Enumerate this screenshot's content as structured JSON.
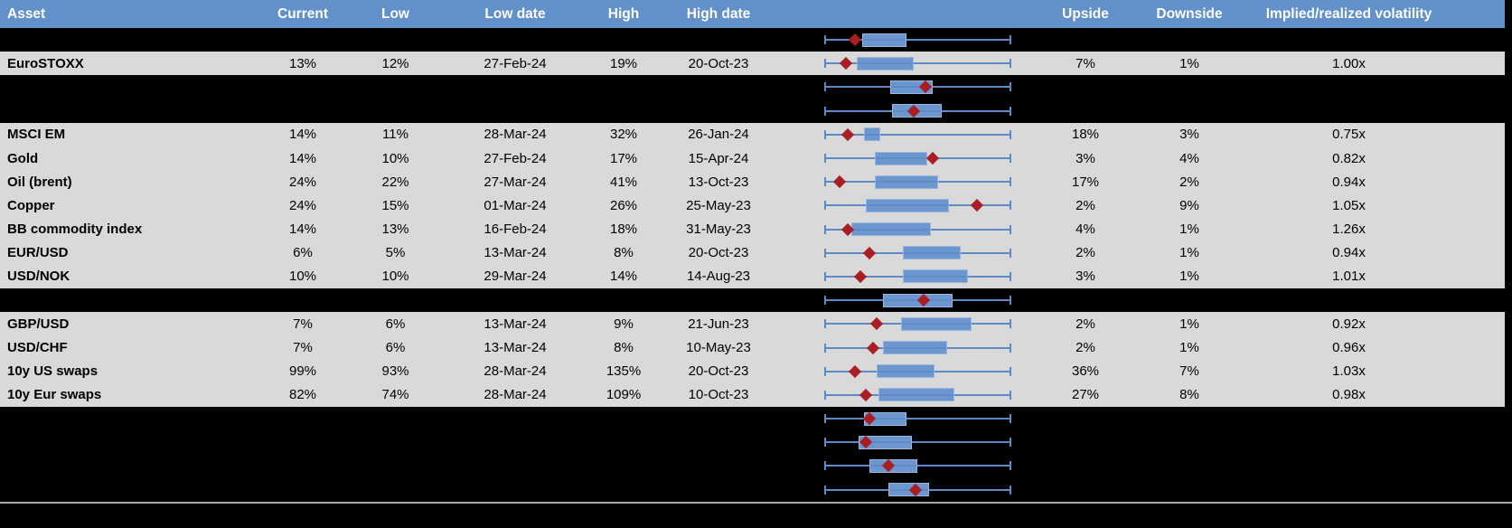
{
  "colors": {
    "header_bg": "#6190CB",
    "header_text": "#FFFFFF",
    "row_bg": "#D9D9D9",
    "hidden_row_bg": "#000000",
    "whisker_blue": "#5B8AC6",
    "box_fill_blue": "#6B96CE",
    "box_border_blue": "#9AB6DE",
    "marker_red": "#A91E22",
    "separator_gray": "#A6A6A6",
    "text": "#000000"
  },
  "chart_data": {
    "type": "table",
    "note_boxplot_units": "box values are normalized 0-1 across each row's whisker span (whisker_min=0, whisker_max=1)",
    "columns": [
      {
        "key": "asset",
        "label": "Asset"
      },
      {
        "key": "current",
        "label": "Current"
      },
      {
        "key": "low",
        "label": "Low"
      },
      {
        "key": "low_date",
        "label": "Low date"
      },
      {
        "key": "high",
        "label": "High"
      },
      {
        "key": "high_date",
        "label": "High date"
      },
      {
        "key": "boxplot",
        "label": ""
      },
      {
        "key": "upside",
        "label": "Upside"
      },
      {
        "key": "downside",
        "label": "Downside"
      },
      {
        "key": "implied_realized",
        "label": "Implied/realized volatility"
      }
    ],
    "rows": [
      {
        "type": "chart",
        "box": {
          "whisker_min": 0,
          "q1": 0.2,
          "q3": 0.43,
          "whisker_max": 1,
          "marker": 0.16
        }
      },
      {
        "type": "data",
        "asset": "EuroSTOXX",
        "current": "13%",
        "low": "12%",
        "low_date": "27-Feb-24",
        "high": "19%",
        "high_date": "20-Oct-23",
        "upside": "7%",
        "downside": "1%",
        "implied_realized": "1.00x",
        "box": {
          "whisker_min": 0,
          "q1": 0.17,
          "q3": 0.47,
          "whisker_max": 1,
          "marker": 0.11
        }
      },
      {
        "type": "chart",
        "box": {
          "whisker_min": 0,
          "q1": 0.35,
          "q3": 0.57,
          "whisker_max": 1,
          "marker": 0.54
        }
      },
      {
        "type": "chart",
        "box": {
          "whisker_min": 0,
          "q1": 0.36,
          "q3": 0.62,
          "whisker_max": 1,
          "marker": 0.48
        }
      },
      {
        "type": "data",
        "asset": "MSCI EM",
        "current": "14%",
        "low": "11%",
        "low_date": "28-Mar-24",
        "high": "32%",
        "high_date": "26-Jan-24",
        "upside": "18%",
        "downside": "3%",
        "implied_realized": "0.75x",
        "box": {
          "whisker_min": 0,
          "q1": 0.21,
          "q3": 0.29,
          "whisker_max": 1,
          "marker": 0.12
        }
      },
      {
        "type": "data",
        "asset": "Gold",
        "current": "14%",
        "low": "10%",
        "low_date": "27-Feb-24",
        "high": "17%",
        "high_date": "15-Apr-24",
        "upside": "3%",
        "downside": "4%",
        "implied_realized": "0.82x",
        "box": {
          "whisker_min": 0,
          "q1": 0.27,
          "q3": 0.54,
          "whisker_max": 1,
          "marker": 0.58
        }
      },
      {
        "type": "data",
        "asset": "Oil (brent)",
        "current": "24%",
        "low": "22%",
        "low_date": "27-Mar-24",
        "high": "41%",
        "high_date": "13-Oct-23",
        "upside": "17%",
        "downside": "2%",
        "implied_realized": "0.94x",
        "box": {
          "whisker_min": 0,
          "q1": 0.27,
          "q3": 0.6,
          "whisker_max": 1,
          "marker": 0.08
        }
      },
      {
        "type": "data",
        "asset": "Copper",
        "current": "24%",
        "low": "15%",
        "low_date": "01-Mar-24",
        "high": "26%",
        "high_date": "25-May-23",
        "upside": "2%",
        "downside": "9%",
        "implied_realized": "1.05x",
        "box": {
          "whisker_min": 0,
          "q1": 0.22,
          "q3": 0.66,
          "whisker_max": 1,
          "marker": 0.82
        }
      },
      {
        "type": "data",
        "asset": "BB commodity index",
        "current": "14%",
        "low": "13%",
        "low_date": "16-Feb-24",
        "high": "18%",
        "high_date": "31-May-23",
        "upside": "4%",
        "downside": "1%",
        "implied_realized": "1.26x",
        "box": {
          "whisker_min": 0,
          "q1": 0.14,
          "q3": 0.56,
          "whisker_max": 1,
          "marker": 0.12
        }
      },
      {
        "type": "data",
        "asset": "EUR/USD",
        "current": "6%",
        "low": "5%",
        "low_date": "13-Mar-24",
        "high": "8%",
        "high_date": "20-Oct-23",
        "upside": "2%",
        "downside": "1%",
        "implied_realized": "0.94x",
        "box": {
          "whisker_min": 0,
          "q1": 0.42,
          "q3": 0.72,
          "whisker_max": 1,
          "marker": 0.24
        }
      },
      {
        "type": "data",
        "asset": "USD/NOK",
        "current": "10%",
        "low": "10%",
        "low_date": "29-Mar-24",
        "high": "14%",
        "high_date": "14-Aug-23",
        "upside": "3%",
        "downside": "1%",
        "implied_realized": "1.01x",
        "box": {
          "whisker_min": 0,
          "q1": 0.42,
          "q3": 0.76,
          "whisker_max": 1,
          "marker": 0.19
        }
      },
      {
        "type": "chart",
        "box": {
          "whisker_min": 0,
          "q1": 0.31,
          "q3": 0.68,
          "whisker_max": 1,
          "marker": 0.53
        }
      },
      {
        "type": "data",
        "asset": "GBP/USD",
        "current": "7%",
        "low": "6%",
        "low_date": "13-Mar-24",
        "high": "9%",
        "high_date": "21-Jun-23",
        "upside": "2%",
        "downside": "1%",
        "implied_realized": "0.92x",
        "box": {
          "whisker_min": 0,
          "q1": 0.41,
          "q3": 0.78,
          "whisker_max": 1,
          "marker": 0.28
        }
      },
      {
        "type": "data",
        "asset": "USD/CHF",
        "current": "7%",
        "low": "6%",
        "low_date": "13-Mar-24",
        "high": "8%",
        "high_date": "10-May-23",
        "upside": "2%",
        "downside": "1%",
        "implied_realized": "0.96x",
        "box": {
          "whisker_min": 0,
          "q1": 0.31,
          "q3": 0.65,
          "whisker_max": 1,
          "marker": 0.26
        }
      },
      {
        "type": "data",
        "asset": "10y US swaps",
        "current": "99%",
        "low": "93%",
        "low_date": "28-Mar-24",
        "high": "135%",
        "high_date": "20-Oct-23",
        "upside": "36%",
        "downside": "7%",
        "implied_realized": "1.03x",
        "box": {
          "whisker_min": 0,
          "q1": 0.28,
          "q3": 0.58,
          "whisker_max": 1,
          "marker": 0.16
        }
      },
      {
        "type": "data",
        "asset": "10y Eur swaps",
        "current": "82%",
        "low": "74%",
        "low_date": "28-Mar-24",
        "high": "109%",
        "high_date": "10-Oct-23",
        "upside": "27%",
        "downside": "8%",
        "implied_realized": "0.98x",
        "box": {
          "whisker_min": 0,
          "q1": 0.29,
          "q3": 0.69,
          "whisker_max": 1,
          "marker": 0.22
        }
      },
      {
        "type": "chart",
        "box": {
          "whisker_min": 0,
          "q1": 0.21,
          "q3": 0.43,
          "whisker_max": 1,
          "marker": 0.24
        }
      },
      {
        "type": "chart",
        "box": {
          "whisker_min": 0,
          "q1": 0.18,
          "q3": 0.46,
          "whisker_max": 1,
          "marker": 0.22
        }
      },
      {
        "type": "chart",
        "box": {
          "whisker_min": 0,
          "q1": 0.24,
          "q3": 0.49,
          "whisker_max": 1,
          "marker": 0.34
        }
      },
      {
        "type": "chart",
        "box": {
          "whisker_min": 0,
          "q1": 0.34,
          "q3": 0.55,
          "whisker_max": 1,
          "marker": 0.49
        }
      }
    ]
  }
}
